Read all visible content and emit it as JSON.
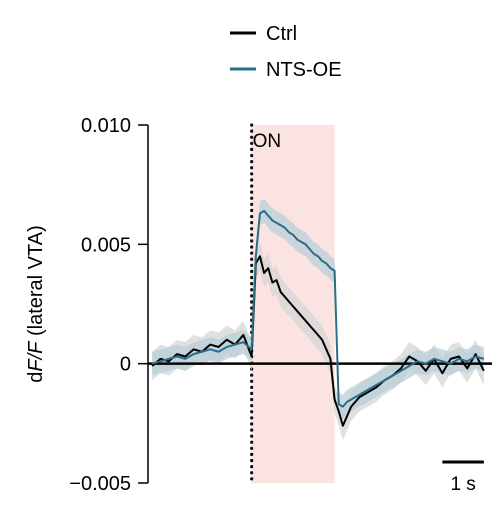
{
  "chart_data": {
    "type": "line",
    "ylabel_prefix": "d",
    "ylabel_italic": "F/F",
    "ylabel_suffix": " (lateral VTA)",
    "yticks": [
      {
        "value": 0.01,
        "label": "0.010"
      },
      {
        "value": 0.005,
        "label": "0.005"
      },
      {
        "value": 0,
        "label": "0"
      },
      {
        "value": -0.005,
        "label": "−0.005"
      }
    ],
    "ylim": [
      -0.005,
      0.01
    ],
    "xlim": [
      -2.5,
      5.7
    ],
    "stim": {
      "label": "ON",
      "start": 0,
      "end": 2,
      "color": "#fbe3e1"
    },
    "scale_bar": {
      "label": "1 s",
      "length": 1,
      "start_x": 4.6
    },
    "legend_placement": "top-center",
    "series": [
      {
        "name": "Ctrl",
        "color": "#000000",
        "band_color": "#d6d6d6",
        "sem": 0.0006,
        "x": [
          -2.4,
          -2.2,
          -2.0,
          -1.8,
          -1.6,
          -1.4,
          -1.2,
          -1.0,
          -0.8,
          -0.6,
          -0.4,
          -0.2,
          0.0,
          0.1,
          0.2,
          0.3,
          0.4,
          0.5,
          0.6,
          0.7,
          0.8,
          0.9,
          1.0,
          1.1,
          1.2,
          1.3,
          1.4,
          1.5,
          1.6,
          1.7,
          1.8,
          1.9,
          2.0,
          2.1,
          2.2,
          2.3,
          2.4,
          2.5,
          2.6,
          2.8,
          3.0,
          3.2,
          3.4,
          3.6,
          3.8,
          4.0,
          4.2,
          4.4,
          4.6,
          4.8,
          5.0,
          5.2,
          5.4,
          5.6
        ],
        "values": [
          -0.0001,
          0.0002,
          0.0001,
          0.0004,
          0.0003,
          0.0006,
          0.0005,
          0.0008,
          0.0007,
          0.001,
          0.0008,
          0.0012,
          0.0003,
          0.0042,
          0.0045,
          0.0038,
          0.004,
          0.0034,
          0.0035,
          0.003,
          0.0028,
          0.0026,
          0.0024,
          0.0022,
          0.002,
          0.0018,
          0.0016,
          0.0014,
          0.0012,
          0.001,
          0.0006,
          0.0002,
          -0.0015,
          -0.002,
          -0.0026,
          -0.0022,
          -0.0018,
          -0.0016,
          -0.0014,
          -0.0012,
          -0.001,
          -0.0007,
          -0.0005,
          -0.0002,
          0.0003,
          0.0001,
          -0.0003,
          0.0002,
          -0.0004,
          0.0002,
          0.0003,
          -0.0002,
          0.0004,
          -0.0003
        ]
      },
      {
        "name": "NTS-OE",
        "color": "#2a6e88",
        "band_color": "#b9cfd8",
        "sem": 0.0005,
        "x": [
          -2.4,
          -2.2,
          -2.0,
          -1.8,
          -1.6,
          -1.4,
          -1.2,
          -1.0,
          -0.8,
          -0.6,
          -0.4,
          -0.2,
          0.0,
          0.1,
          0.2,
          0.3,
          0.4,
          0.5,
          0.6,
          0.7,
          0.8,
          0.9,
          1.0,
          1.1,
          1.2,
          1.3,
          1.4,
          1.5,
          1.6,
          1.7,
          1.8,
          1.9,
          2.0,
          2.1,
          2.2,
          2.3,
          2.4,
          2.6,
          2.8,
          3.0,
          3.2,
          3.4,
          3.6,
          3.8,
          4.0,
          4.2,
          4.4,
          4.6,
          4.8,
          5.0,
          5.2,
          5.4,
          5.6
        ],
        "values": [
          0.0,
          0.0001,
          0.0002,
          0.0003,
          0.0002,
          0.0004,
          0.0005,
          0.0006,
          0.0005,
          0.0007,
          0.0008,
          0.0009,
          0.0006,
          0.0045,
          0.0063,
          0.0064,
          0.0062,
          0.006,
          0.0059,
          0.0058,
          0.0057,
          0.0055,
          0.0054,
          0.0052,
          0.0051,
          0.005,
          0.0048,
          0.0046,
          0.0045,
          0.0043,
          0.0042,
          0.004,
          0.0039,
          -0.0017,
          -0.0018,
          -0.0016,
          -0.0015,
          -0.0013,
          -0.0011,
          -0.0009,
          -0.0007,
          -0.0005,
          -0.0003,
          -0.0001,
          0.0001,
          0.0,
          0.0002,
          0.0001,
          0.0,
          0.0002,
          0.0001,
          0.0003,
          0.0002
        ]
      }
    ]
  }
}
